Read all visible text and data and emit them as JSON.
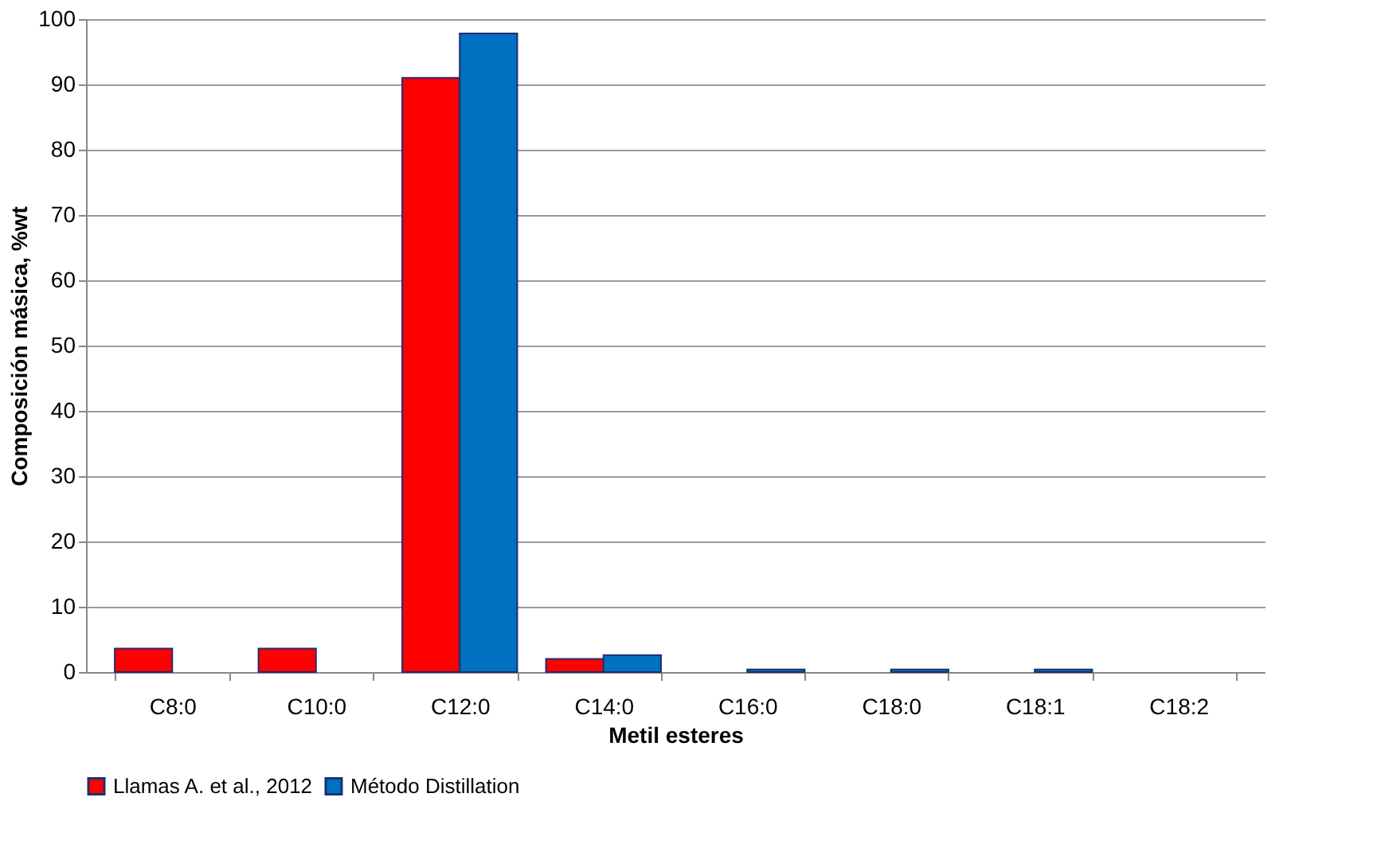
{
  "chart_data": {
    "type": "bar",
    "xlabel": "Metil esteres",
    "ylabel": "Composición másica, %wt",
    "categories": [
      "C8:0",
      "C10:0",
      "C12:0",
      "C14:0",
      "C16:0",
      "C18:0",
      "C18:1",
      "C18:2"
    ],
    "series": [
      {
        "name": "Llamas A. et al., 2012",
        "color": "#ff0000",
        "values": [
          3.6,
          3.6,
          91,
          2,
          null,
          null,
          null,
          null
        ]
      },
      {
        "name": "Método Distillation",
        "color": "#0070c0",
        "values": [
          null,
          null,
          97.8,
          2.6,
          0.4,
          0.4,
          0.4,
          null
        ]
      }
    ],
    "ylim": [
      0,
      100
    ],
    "yticks": [
      0,
      10,
      20,
      30,
      40,
      50,
      60,
      70,
      80,
      90,
      100
    ],
    "grid": "y",
    "legend": "bottom"
  }
}
